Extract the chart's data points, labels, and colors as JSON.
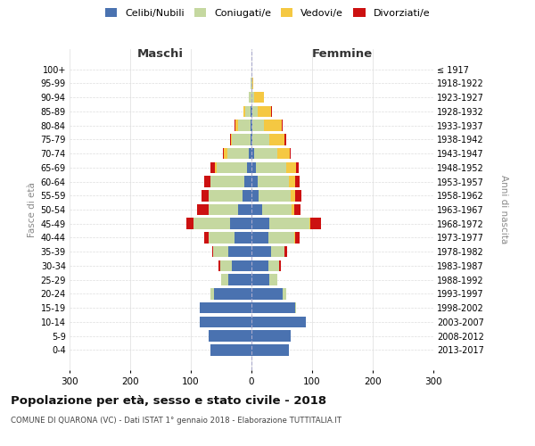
{
  "age_groups": [
    "0-4",
    "5-9",
    "10-14",
    "15-19",
    "20-24",
    "25-29",
    "30-34",
    "35-39",
    "40-44",
    "45-49",
    "50-54",
    "55-59",
    "60-64",
    "65-69",
    "70-74",
    "75-79",
    "80-84",
    "85-89",
    "90-94",
    "95-99",
    "100+"
  ],
  "birth_years": [
    "2013-2017",
    "2008-2012",
    "2003-2007",
    "1998-2002",
    "1993-1997",
    "1988-1992",
    "1983-1987",
    "1978-1982",
    "1973-1977",
    "1968-1972",
    "1963-1967",
    "1958-1962",
    "1953-1957",
    "1948-1952",
    "1943-1947",
    "1938-1942",
    "1933-1937",
    "1928-1932",
    "1923-1927",
    "1918-1922",
    "≤ 1917"
  ],
  "maschi": {
    "celibi": [
      68,
      70,
      85,
      85,
      62,
      38,
      32,
      38,
      28,
      35,
      22,
      15,
      12,
      8,
      5,
      2,
      2,
      1,
      0,
      0,
      0
    ],
    "coniugati": [
      0,
      0,
      0,
      0,
      5,
      12,
      20,
      25,
      42,
      60,
      48,
      55,
      55,
      50,
      35,
      30,
      20,
      10,
      4,
      1,
      0
    ],
    "vedovi": [
      0,
      0,
      0,
      0,
      0,
      0,
      0,
      0,
      0,
      0,
      1,
      1,
      1,
      2,
      5,
      2,
      5,
      2,
      1,
      0,
      0
    ],
    "divorziati": [
      0,
      0,
      0,
      0,
      0,
      0,
      2,
      2,
      8,
      12,
      18,
      12,
      10,
      8,
      2,
      1,
      1,
      0,
      0,
      0,
      0
    ]
  },
  "femmine": {
    "nubili": [
      62,
      65,
      90,
      72,
      52,
      30,
      28,
      32,
      28,
      30,
      18,
      12,
      10,
      8,
      5,
      2,
      2,
      1,
      0,
      0,
      0
    ],
    "coniugate": [
      0,
      0,
      0,
      2,
      5,
      12,
      18,
      22,
      42,
      65,
      48,
      52,
      52,
      50,
      38,
      28,
      18,
      10,
      5,
      1,
      0
    ],
    "vedove": [
      0,
      0,
      0,
      0,
      0,
      0,
      0,
      0,
      2,
      2,
      5,
      8,
      10,
      15,
      20,
      25,
      30,
      22,
      15,
      2,
      0
    ],
    "divorziate": [
      0,
      0,
      0,
      0,
      0,
      0,
      2,
      5,
      8,
      18,
      10,
      10,
      8,
      5,
      2,
      2,
      1,
      1,
      0,
      0,
      0
    ]
  },
  "colors": {
    "celibi_nubili": "#4a72b0",
    "coniugati": "#c5d8a0",
    "vedovi": "#f5c842",
    "divorziati": "#cc1111"
  },
  "xlim": 300,
  "title": "Popolazione per età, sesso e stato civile - 2018",
  "subtitle": "COMUNE DI QUARONA (VC) - Dati ISTAT 1° gennaio 2018 - Elaborazione TUTTITALIA.IT",
  "ylabel": "Fasce di età",
  "ylabel_right": "Anni di nascita",
  "legend_labels": [
    "Celibi/Nubili",
    "Coniugati/e",
    "Vedovi/e",
    "Divorziati/e"
  ],
  "maschi_label": "Maschi",
  "femmine_label": "Femmine",
  "background_color": "#ffffff",
  "grid_color": "#cccccc"
}
